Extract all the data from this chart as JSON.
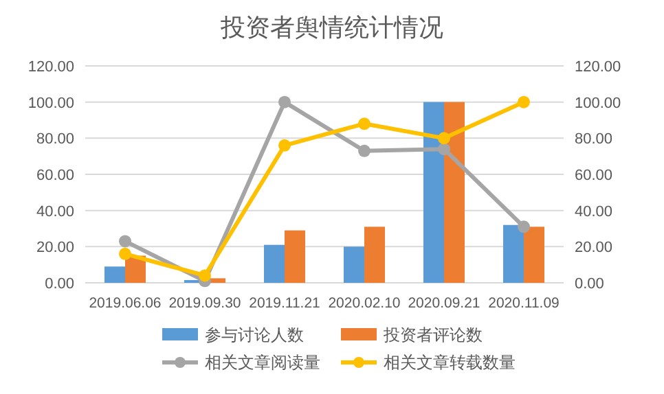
{
  "chart_data": {
    "type": "bar",
    "title": "投资者舆情统计情况",
    "categories": [
      "2019.06.06",
      "2019.09.30",
      "2019.11.21",
      "2020.02.10",
      "2020.09.21",
      "2020.11.09"
    ],
    "series": [
      {
        "name": "参与讨论人数",
        "color": "#5b9bd5",
        "values": [
          9,
          1.5,
          21,
          20,
          100,
          32
        ]
      },
      {
        "name": "投资者评论数",
        "color": "#ed7d31",
        "values": [
          15,
          2.5,
          29,
          31,
          100,
          31
        ]
      },
      {
        "name": "相关文章阅读量",
        "type": "line",
        "axis": "y2",
        "color": "#a5a5a5",
        "values": [
          23,
          1,
          100,
          73,
          74,
          31
        ]
      },
      {
        "name": "相关文章转载数量",
        "type": "line",
        "axis": "y2",
        "color": "#ffc000",
        "values": [
          16,
          4,
          76,
          88,
          80,
          100
        ]
      }
    ],
    "ylim": [
      0,
      120
    ],
    "yticks": [
      {
        "value": 0,
        "label": "0.00"
      },
      {
        "value": 20,
        "label": "20.00"
      },
      {
        "value": 40,
        "label": "40.00"
      },
      {
        "value": 60,
        "label": "60.00"
      },
      {
        "value": 80,
        "label": "80.00"
      },
      {
        "value": 100,
        "label": "100.00"
      },
      {
        "value": 120,
        "label": "120.00"
      }
    ],
    "y2lim": [
      0,
      120
    ],
    "y2ticks": [
      {
        "value": 0,
        "label": "0.00"
      },
      {
        "value": 20,
        "label": "20.00"
      },
      {
        "value": 40,
        "label": "40.00"
      },
      {
        "value": 60,
        "label": "60.00"
      },
      {
        "value": 80,
        "label": "80.00"
      },
      {
        "value": 100,
        "label": "100.00"
      },
      {
        "value": 120,
        "label": "120.00"
      }
    ],
    "grid": "y",
    "legend": "bottom",
    "marker": "circle",
    "line_style": "solid"
  }
}
